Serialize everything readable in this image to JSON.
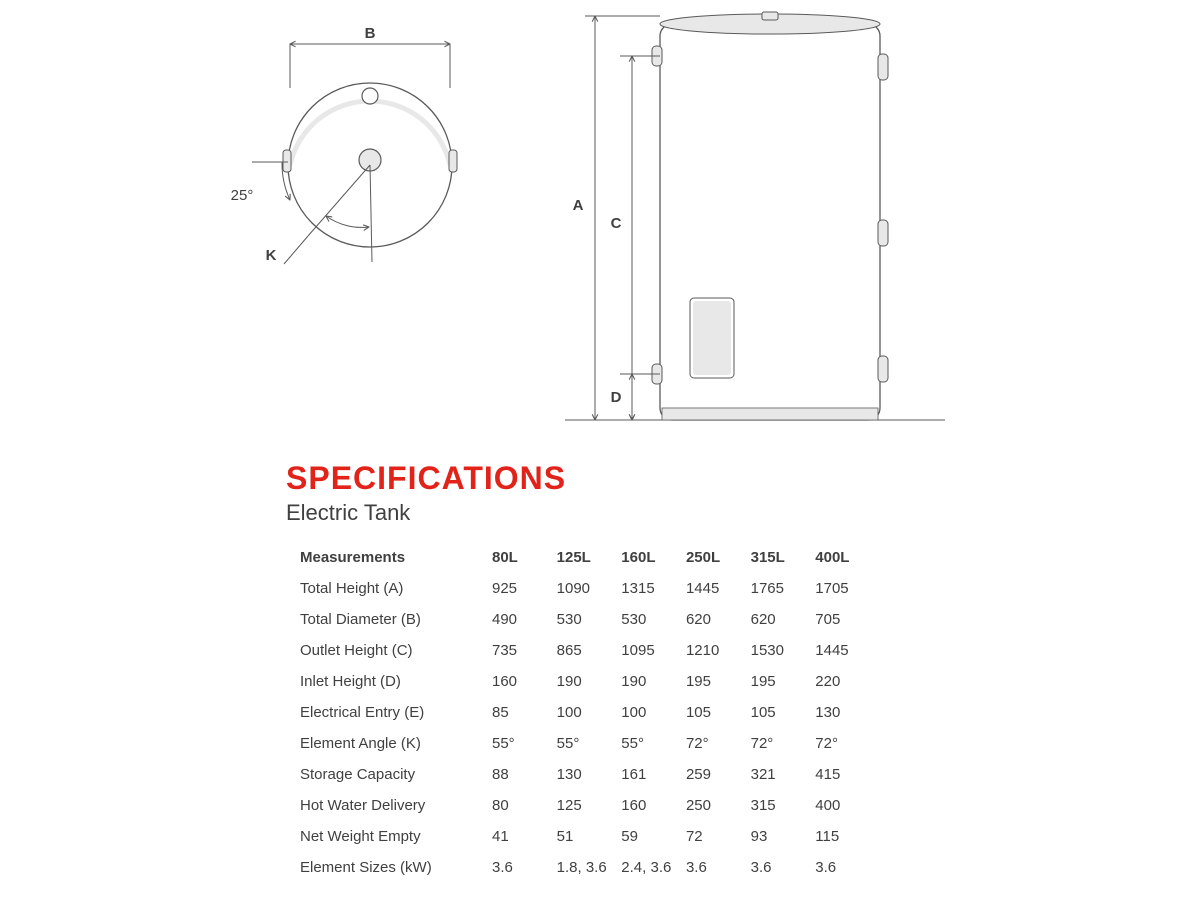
{
  "colors": {
    "title": "#e2231a",
    "text": "#404040",
    "line": "#5a5a5a",
    "shade": "#e8e8e8",
    "bg": "#ffffff"
  },
  "title": "SPECIFICATIONS",
  "subtitle": "Electric Tank",
  "diagram": {
    "top_view": {
      "B_label": "B",
      "angle_label": "25°",
      "K_label": "K"
    },
    "side_view": {
      "A_label": "A",
      "C_label": "C",
      "D_label": "D"
    }
  },
  "table": {
    "header_label": "Measurements",
    "columns": [
      "80L",
      "125L",
      "160L",
      "250L",
      "315L",
      "400L"
    ],
    "rows": [
      {
        "label": "Total Height (A)",
        "values": [
          "925",
          "1090",
          "1315",
          "1445",
          "1765",
          "1705"
        ]
      },
      {
        "label": "Total Diameter (B)",
        "values": [
          "490",
          "530",
          "530",
          "620",
          "620",
          "705"
        ]
      },
      {
        "label": "Outlet Height (C)",
        "values": [
          "735",
          "865",
          "1095",
          "1210",
          "1530",
          "1445"
        ]
      },
      {
        "label": "Inlet Height (D)",
        "values": [
          "160",
          "190",
          "190",
          "195",
          "195",
          "220"
        ]
      },
      {
        "label": "Electrical Entry (E)",
        "values": [
          "85",
          "100",
          "100",
          "105",
          "105",
          "130"
        ]
      },
      {
        "label": "Element Angle (K)",
        "values": [
          "55°",
          "55°",
          "55°",
          "72°",
          "72°",
          "72°"
        ]
      },
      {
        "label": "Storage Capacity",
        "values": [
          "88",
          "130",
          "161",
          "259",
          "321",
          "415"
        ]
      },
      {
        "label": "Hot Water Delivery",
        "values": [
          "80",
          "125",
          "160",
          "250",
          "315",
          "400"
        ]
      },
      {
        "label": "Net Weight Empty",
        "values": [
          "41",
          "51",
          "59",
          "72",
          "93",
          "115"
        ]
      },
      {
        "label": "Element Sizes (kW)",
        "values": [
          "3.6",
          "1.8, 3.6",
          "2.4, 3.6",
          "3.6",
          "3.6",
          "3.6"
        ]
      }
    ]
  }
}
